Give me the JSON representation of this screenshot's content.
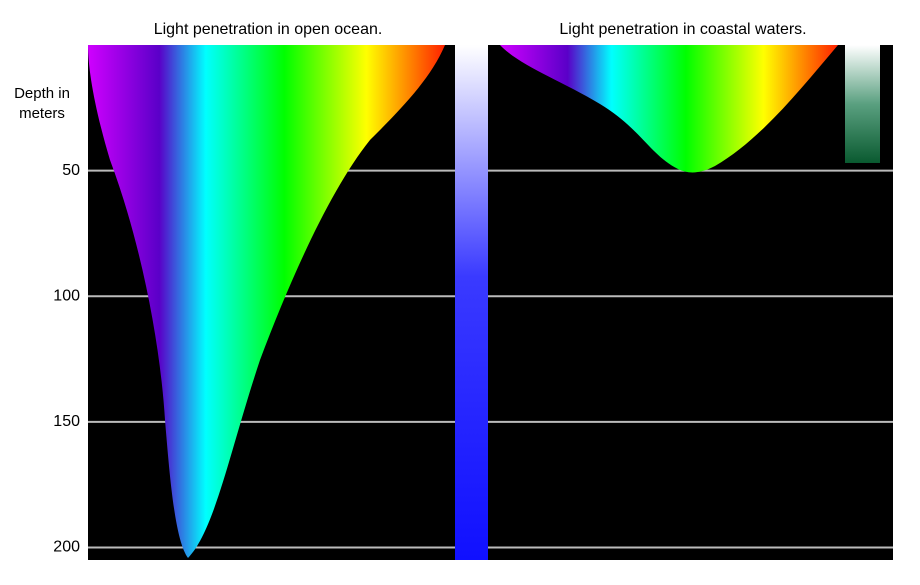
{
  "panels": [
    {
      "title": "Light penetration in open ocean."
    },
    {
      "title": "Light penetration in coastal waters."
    }
  ],
  "axis": {
    "label": "Depth in meters",
    "ylim": [
      0,
      205
    ],
    "yticks": [
      50,
      100,
      150,
      200
    ]
  }
}
